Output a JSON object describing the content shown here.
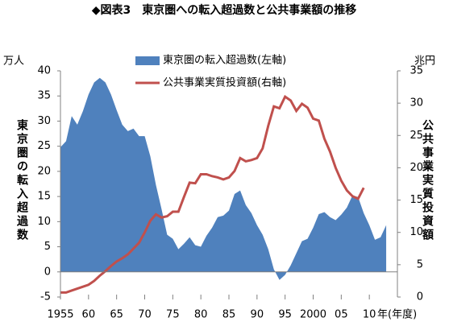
{
  "chart_data": {
    "type": "area-line",
    "title": "◆図表3　東京圏への転入超過数と公共事業額の推移",
    "y_unit": "万人",
    "y2_unit": "兆円",
    "x_unit": "年(年度)",
    "y_label": "東京圏の転入超過数",
    "y2_label": "公共事業実質投資額",
    "x": [
      1955,
      1956,
      1957,
      1958,
      1959,
      1960,
      1961,
      1962,
      1963,
      1964,
      1965,
      1966,
      1967,
      1968,
      1969,
      1970,
      1971,
      1972,
      1973,
      1974,
      1975,
      1976,
      1977,
      1978,
      1979,
      1980,
      1981,
      1982,
      1983,
      1984,
      1985,
      1986,
      1987,
      1988,
      1989,
      1990,
      1991,
      1992,
      1993,
      1994,
      1995,
      1996,
      1997,
      1998,
      1999,
      2000,
      2001,
      2002,
      2003,
      2004,
      2005,
      2006,
      2007,
      2008,
      2009,
      2010,
      2011,
      2012,
      2013
    ],
    "series": [
      {
        "name": "東京圏の転入超過数(左軸)",
        "type": "area",
        "color": "#4f81bd",
        "axis": "y",
        "values": [
          24.8,
          26,
          31,
          29.3,
          32,
          35.3,
          37.7,
          38.6,
          37.7,
          35.3,
          32.2,
          29.3,
          28,
          28.5,
          27,
          27,
          23,
          17.3,
          12.5,
          7.4,
          6.6,
          4.5,
          5.6,
          6.9,
          5.3,
          5,
          7.2,
          8.8,
          10.9,
          11.2,
          12.2,
          15.5,
          16.2,
          13.3,
          11.7,
          9.3,
          7.4,
          4.5,
          0.5,
          -1.6,
          -0.6,
          1.3,
          3.7,
          6.1,
          6.6,
          8.8,
          11.5,
          11.9,
          10.9,
          10.3,
          11.4,
          12.8,
          15.2,
          14.9,
          11.7,
          9.3,
          6.4,
          6.9,
          9.3
        ]
      },
      {
        "name": "公共事業実質投資額(右軸)",
        "type": "line",
        "color": "#c0504d",
        "axis": "y2",
        "values": [
          0.7,
          0.7,
          1,
          1.3,
          1.6,
          1.9,
          2.5,
          3.3,
          4,
          4.8,
          5.5,
          6,
          6.6,
          7.5,
          8.4,
          10,
          11.8,
          12.8,
          12.3,
          12.5,
          13.2,
          13.2,
          15.5,
          17.7,
          17.6,
          19,
          19,
          18.7,
          18.5,
          18.2,
          18.5,
          19.5,
          21.5,
          21,
          21.2,
          21.5,
          23,
          26.5,
          29.5,
          29.2,
          31,
          30.4,
          28.8,
          29.9,
          29.3,
          27.6,
          27.3,
          24.5,
          22.5,
          20,
          18,
          16.5,
          15.6,
          15.2,
          16.9,
          null,
          null,
          null,
          null
        ]
      }
    ],
    "xlim": [
      1955,
      2015
    ],
    "xticks": [
      {
        "value": 1955,
        "label": "1955"
      },
      {
        "value": 1960,
        "label": "60"
      },
      {
        "value": 1965,
        "label": "65"
      },
      {
        "value": 1970,
        "label": "70"
      },
      {
        "value": 1975,
        "label": "75"
      },
      {
        "value": 1980,
        "label": "80"
      },
      {
        "value": 1985,
        "label": "85"
      },
      {
        "value": 1990,
        "label": "90"
      },
      {
        "value": 1995,
        "label": "95"
      },
      {
        "value": 2000,
        "label": "2000"
      },
      {
        "value": 2005,
        "label": "05"
      },
      {
        "value": 2010,
        "label": "10"
      }
    ],
    "ylim": [
      -5,
      40
    ],
    "yticks": [
      -5,
      0,
      5,
      10,
      15,
      20,
      25,
      30,
      35,
      40
    ],
    "y2lim": [
      0,
      35
    ],
    "y2ticks": [
      0,
      5,
      10,
      15,
      20,
      25,
      30,
      35
    ],
    "grid": false
  }
}
